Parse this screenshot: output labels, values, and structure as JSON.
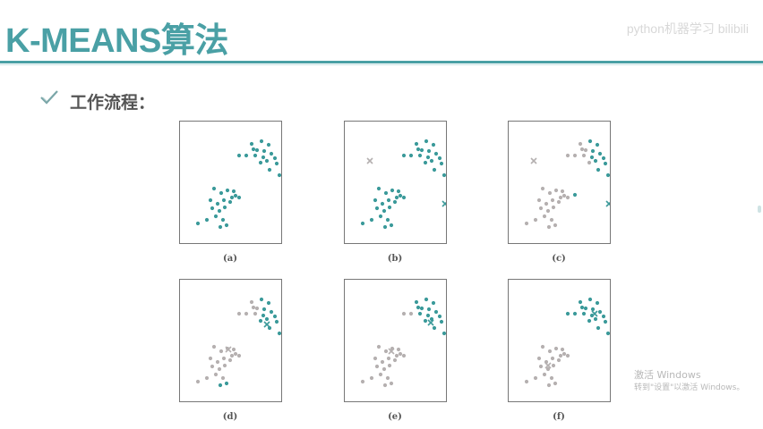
{
  "title": "K-MEANS算法",
  "watermark": "python机器学习 bilibili",
  "section_label": "工作流程：",
  "icons": {
    "bullet": "check-icon"
  },
  "colors": {
    "accent": "#4aa0a5",
    "cluster_a": "#3b9a9a",
    "cluster_b": "#b5b0b0"
  },
  "activation": {
    "line1": "激活 Windows",
    "line2": "转到\"设置\"以激活 Windows。"
  },
  "panels": [
    {
      "label": "(a)",
      "state": "unassigned",
      "centroids": []
    },
    {
      "label": "(b)",
      "state": "initial-centroids",
      "centroids": [
        "upper-left",
        "right"
      ]
    },
    {
      "label": "(c)",
      "state": "first-assignment",
      "centroids": [
        "upper-left",
        "right"
      ]
    },
    {
      "label": "(d)",
      "state": "centroid-update",
      "centroids": [
        "lower-left",
        "upper-right"
      ]
    },
    {
      "label": "(e)",
      "state": "reassignment",
      "centroids": [
        "lower-left",
        "upper-right"
      ]
    },
    {
      "label": "(f)",
      "state": "converged",
      "centroids": [
        "lower-left",
        "upper-right"
      ]
    }
  ]
}
